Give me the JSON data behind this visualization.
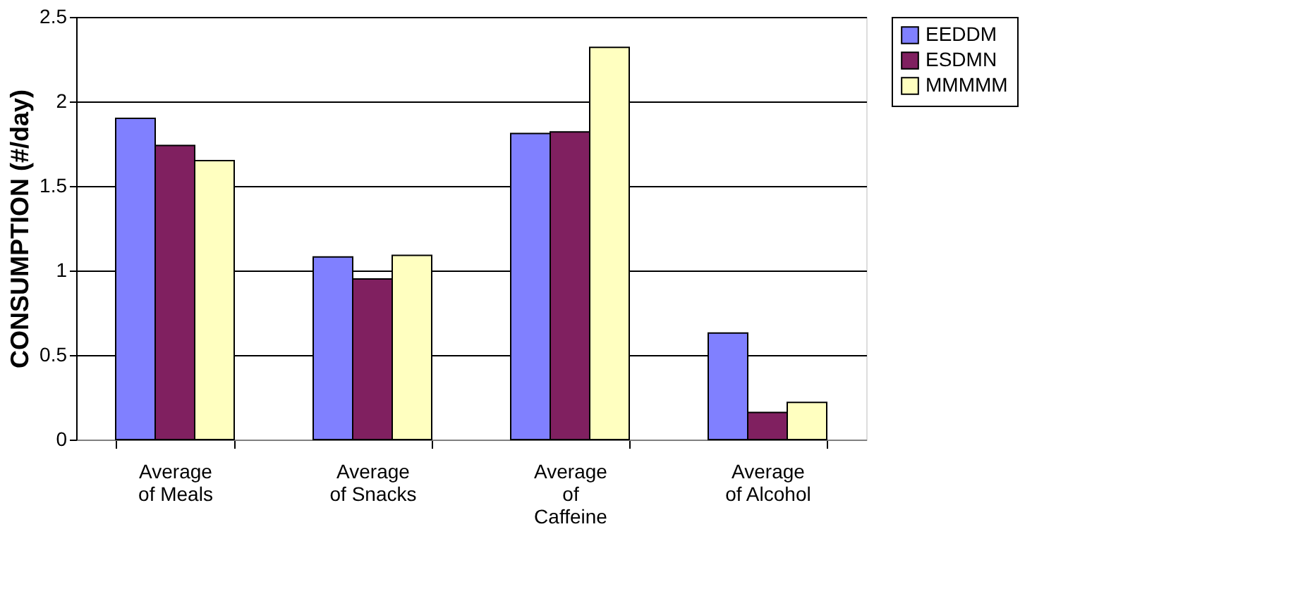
{
  "chart_data": {
    "type": "bar",
    "ylabel": "CONSUMPTION (#/day)",
    "categories": [
      "Average\nof Meals",
      "Average\nof Snacks",
      "Average\nof\nCaffeine",
      "Average\nof Alcohol"
    ],
    "series": [
      {
        "name": "EEDDM",
        "color": "#8080ff",
        "values": [
          1.9,
          1.08,
          1.81,
          0.63
        ]
      },
      {
        "name": "ESDMN",
        "color": "#802060",
        "values": [
          1.74,
          0.95,
          1.82,
          0.16
        ]
      },
      {
        "name": "MMMMM",
        "color": "#ffffc0",
        "values": [
          1.65,
          1.09,
          2.32,
          0.22
        ]
      }
    ],
    "ylim": [
      0,
      2.5
    ],
    "yticks": [
      0,
      0.5,
      1,
      1.5,
      2,
      2.5
    ],
    "grid": "y",
    "legend": "right"
  }
}
